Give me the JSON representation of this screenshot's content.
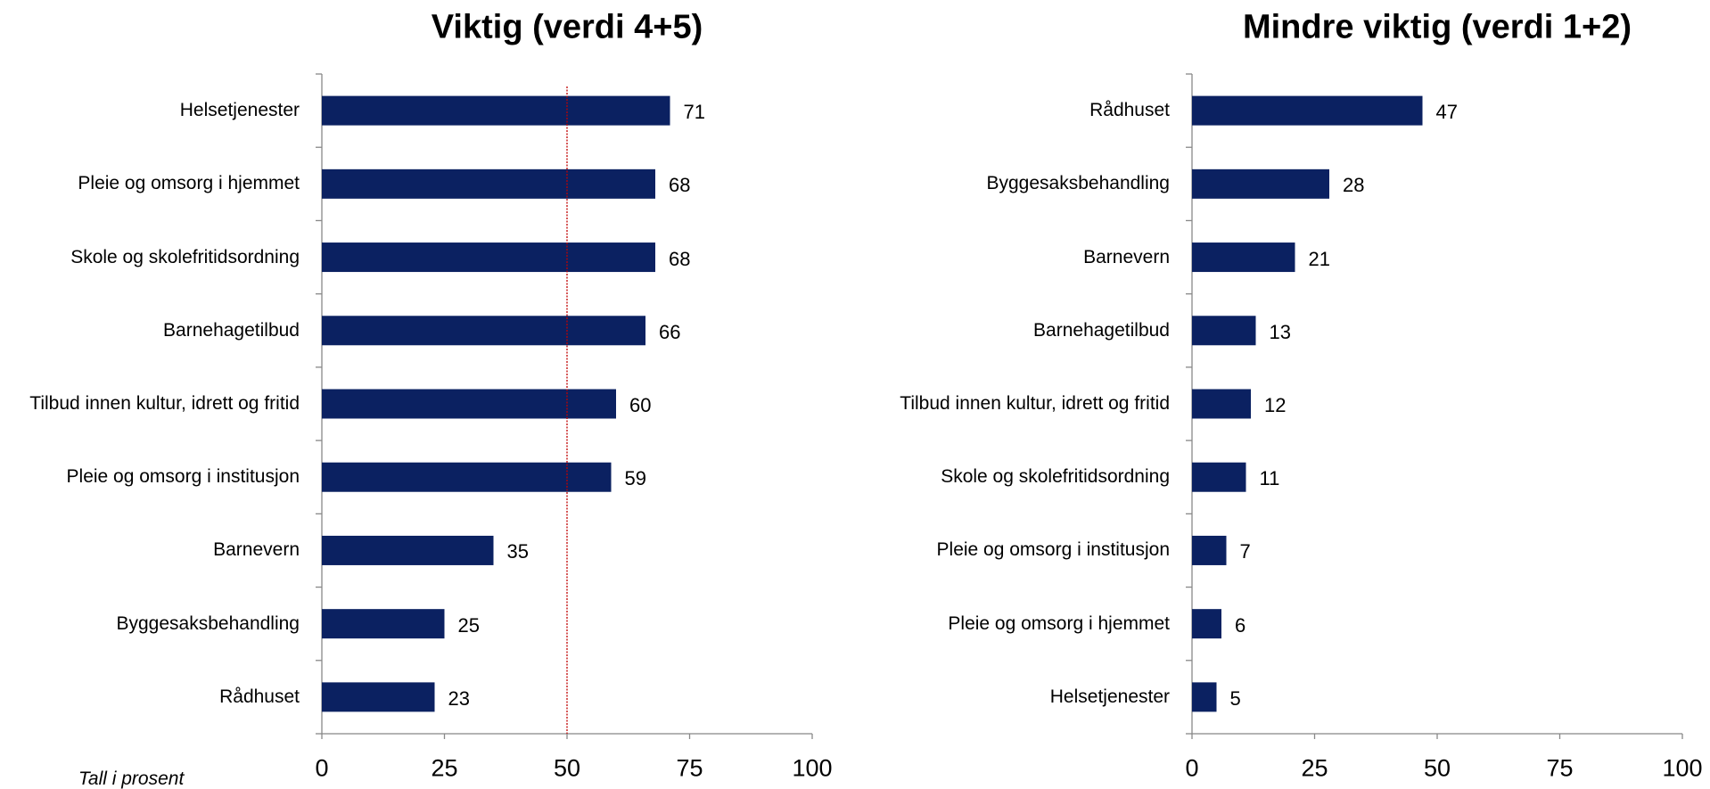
{
  "chart_data": [
    {
      "type": "bar",
      "orientation": "horizontal",
      "title": "Viktig (verdi 4+5)",
      "categories": [
        "Helsetjenester",
        "Pleie og omsorg i hjemmet",
        "Skole og skolefritidsordning",
        "Barnehagetilbud",
        "Tilbud innen kultur, idrett og fritid",
        "Pleie og omsorg i institusjon",
        "Barnevern",
        "Byggesaksbehandling",
        "Rådhuset"
      ],
      "values": [
        71,
        68,
        68,
        66,
        60,
        59,
        35,
        25,
        23
      ],
      "color": "#0b2161",
      "xlim": [
        0,
        100
      ],
      "xticks": [
        0,
        25,
        50,
        75,
        100
      ],
      "grid": false,
      "reference_line": 50,
      "reference_color": "#c00000",
      "annotation": "Tall i prosent"
    },
    {
      "type": "bar",
      "orientation": "horizontal",
      "title": "Mindre viktig (verdi 1+2)",
      "categories": [
        "Rådhuset",
        "Byggesaksbehandling",
        "Barnevern",
        "Barnehagetilbud",
        "Tilbud innen kultur, idrett og fritid",
        "Skole og skolefritidsordning",
        "Pleie og omsorg i institusjon",
        "Pleie og omsorg i hjemmet",
        "Helsetjenester"
      ],
      "values": [
        47,
        28,
        21,
        13,
        12,
        11,
        7,
        6,
        5
      ],
      "color": "#0b2161",
      "xlim": [
        0,
        100
      ],
      "xticks": [
        0,
        25,
        50,
        75,
        100
      ],
      "grid": false
    }
  ]
}
